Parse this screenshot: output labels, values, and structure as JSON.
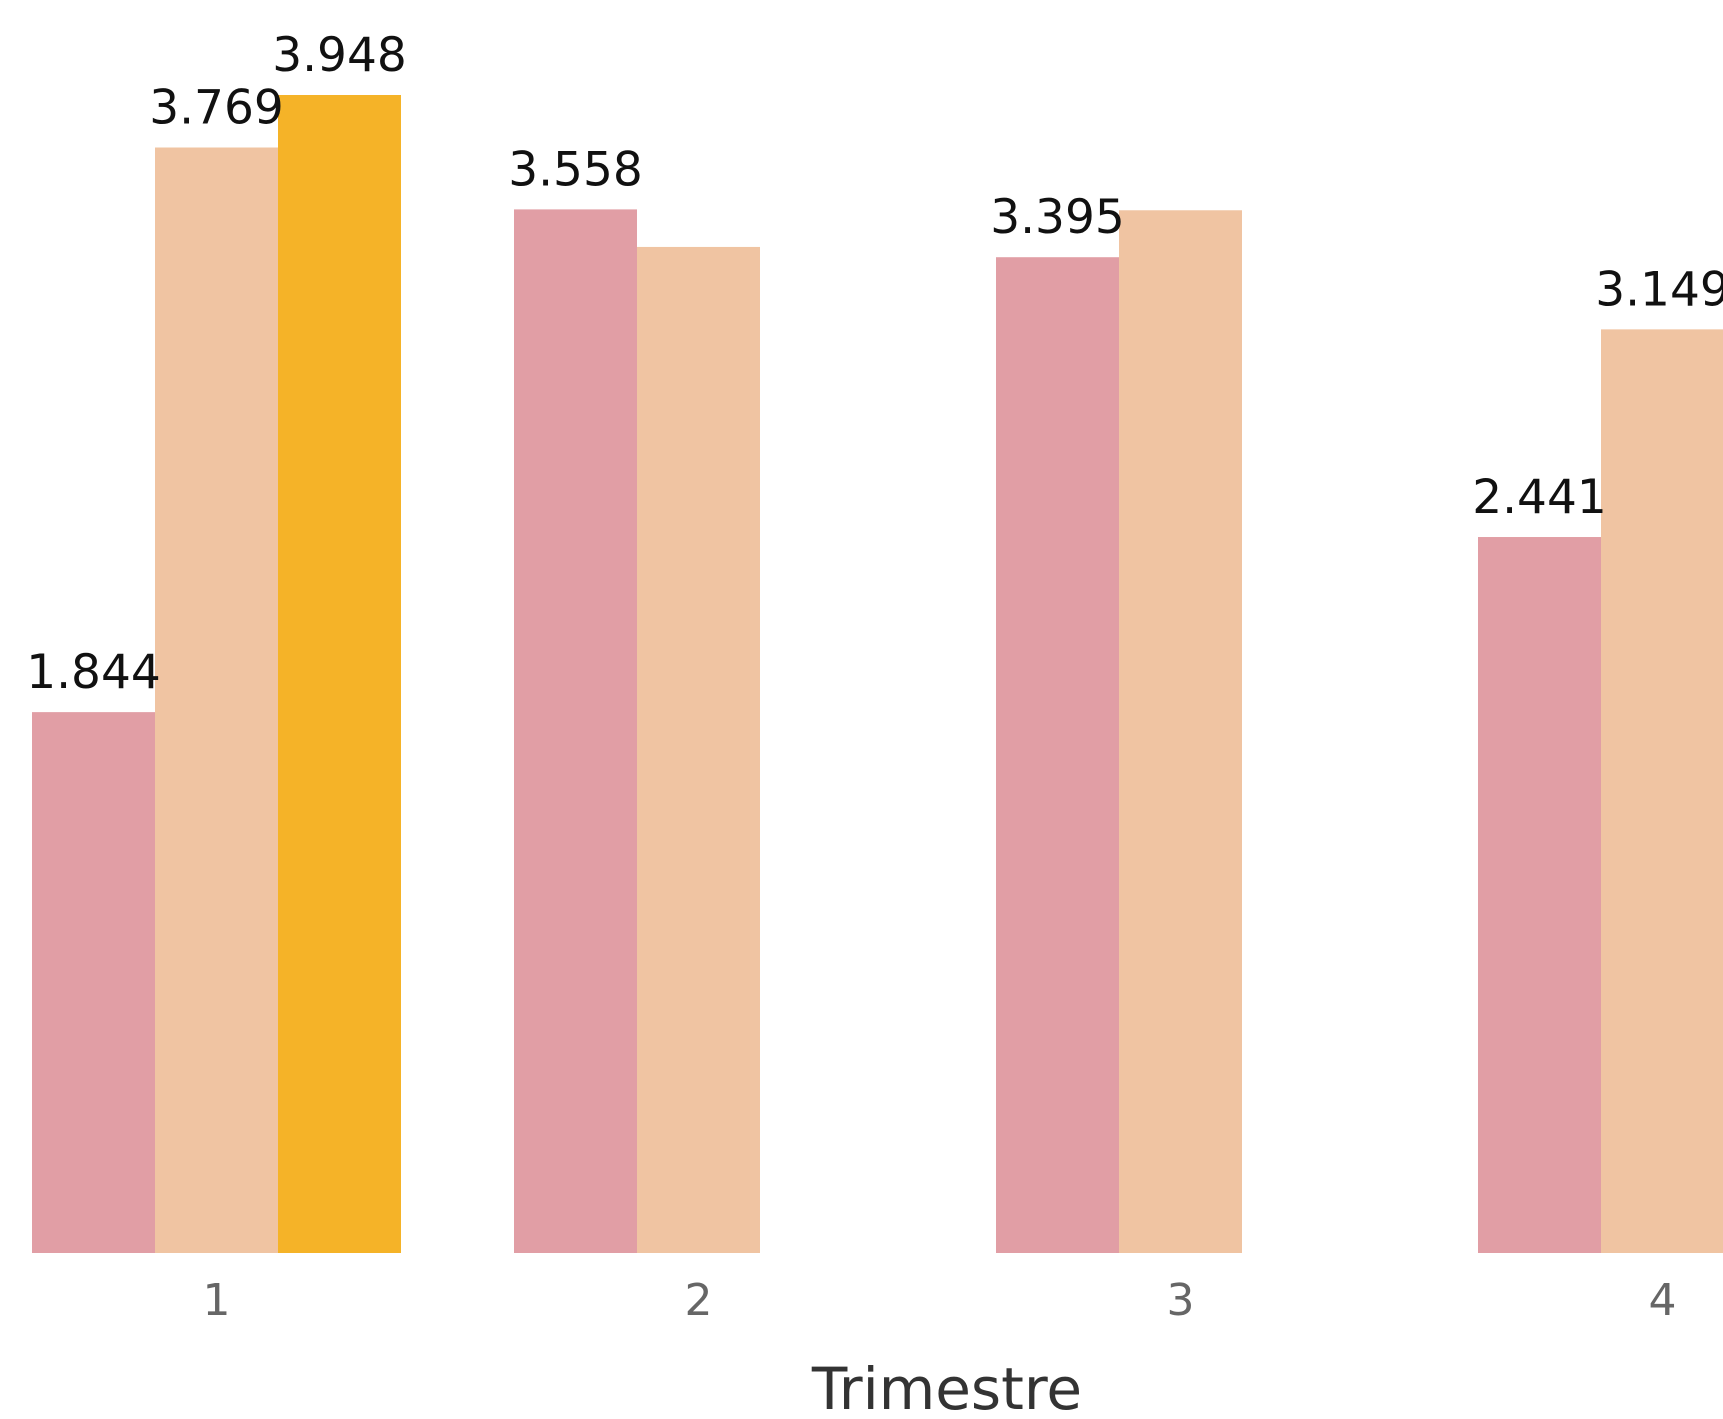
{
  "chart_data": {
    "type": "bar",
    "xlabel": "Trimestre",
    "ylabel": "",
    "categories": [
      "1",
      "2",
      "3",
      "4"
    ],
    "ylim": [
      0,
      3.948
    ],
    "grid": false,
    "legend": "none",
    "bars": [
      {
        "category": "1",
        "slot": 0,
        "value": 1.844,
        "label": "1.844",
        "color": "#E19EA5"
      },
      {
        "category": "1",
        "slot": 1,
        "value": 3.769,
        "label": "3.769",
        "color": "#F0C4A2"
      },
      {
        "category": "1",
        "slot": 2,
        "value": 3.948,
        "label": "3.948",
        "color": "#F5B328"
      },
      {
        "category": "2",
        "slot": 0,
        "value": 3.558,
        "label": "3.558",
        "color": "#E19EA5"
      },
      {
        "category": "2",
        "slot": 1,
        "value": 3.43,
        "label": "",
        "color": "#F0C4A2"
      },
      {
        "category": "3",
        "slot": 0,
        "value": 3.395,
        "label": "3.395",
        "color": "#E19EA5"
      },
      {
        "category": "3",
        "slot": 1,
        "value": 3.555,
        "label": "",
        "color": "#F0C4A2"
      },
      {
        "category": "4",
        "slot": 0,
        "value": 2.441,
        "label": "2.441",
        "color": "#E19EA5"
      },
      {
        "category": "4",
        "slot": 1,
        "value": 3.149,
        "label": "3.149",
        "color": "#F0C4A2"
      }
    ]
  }
}
